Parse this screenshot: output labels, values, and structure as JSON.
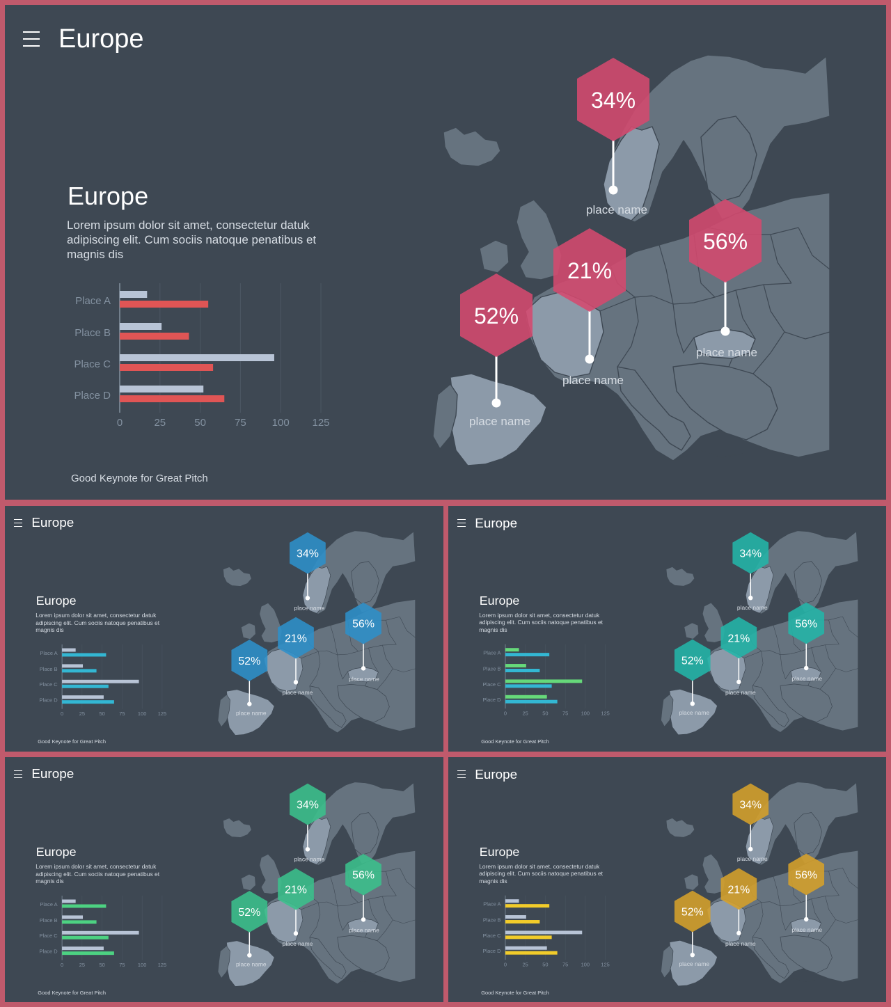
{
  "header_title": "Europe",
  "section_title": "Europe",
  "body_text": "Lorem ipsum dolor sit amet, consectetur datuk adipiscing elit. Cum sociis natoque penatibus et magnis dis",
  "footer": "Good Keynote for Great Pitch",
  "chart_data": {
    "type": "bar",
    "orientation": "horizontal",
    "categories": [
      "Place A",
      "Place B",
      "Place C",
      "Place D"
    ],
    "series": [
      {
        "values": [
          17,
          26,
          96,
          52
        ]
      },
      {
        "values": [
          55,
          43,
          58,
          65
        ]
      }
    ],
    "xlim": [
      0,
      125
    ],
    "xticks": [
      0,
      25,
      50,
      75,
      100,
      125
    ],
    "grid": true
  },
  "markers": [
    {
      "value": "34%",
      "label": "place name"
    },
    {
      "value": "21%",
      "label": "place name"
    },
    {
      "value": "56%",
      "label": "place name"
    },
    {
      "value": "52%",
      "label": "place name"
    }
  ],
  "themes": [
    {
      "name": "red",
      "hex": "#d5496e",
      "bar_a": "#b8c4d6",
      "bar_b": "#e05555"
    },
    {
      "name": "blue",
      "hex": "#2d8fc9",
      "bar_a": "#b8c4d6",
      "bar_b": "#33b7d3"
    },
    {
      "name": "teal",
      "hex": "#23b5a8",
      "bar_a": "#66d97a",
      "bar_b": "#33b7d3"
    },
    {
      "name": "green",
      "hex": "#3bc08c",
      "bar_a": "#b8c4d6",
      "bar_b": "#4dd282"
    },
    {
      "name": "gold",
      "hex": "#d6a12a",
      "bar_a": "#b8c4d6",
      "bar_b": "#f2cc2a"
    }
  ],
  "colors": {
    "background": "#3e4853",
    "border": "#c05a6c",
    "map": "#66737f",
    "map_highlight": "#8c9aa9"
  },
  "icons": {
    "menu": "hamburger-menu-icon"
  }
}
